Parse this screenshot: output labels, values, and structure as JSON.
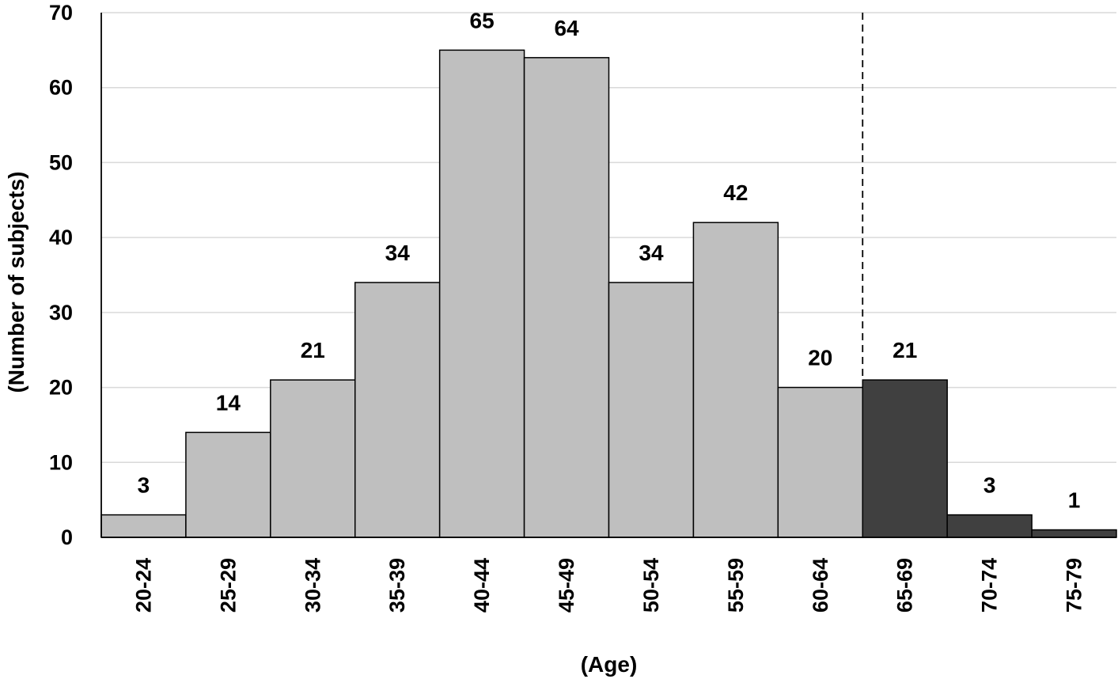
{
  "chart_data": {
    "type": "bar",
    "title": "",
    "xlabel": "(Age)",
    "ylabel": "(Number of subjects)",
    "categories": [
      "20-24",
      "25-29",
      "30-34",
      "35-39",
      "40-44",
      "45-49",
      "50-54",
      "55-59",
      "60-64",
      "65-69",
      "70-74",
      "75-79"
    ],
    "values": [
      3,
      14,
      21,
      34,
      65,
      64,
      34,
      42,
      20,
      21,
      3,
      1
    ],
    "data_labels": [
      "3",
      "14",
      "21",
      "34",
      "65",
      "64",
      "34",
      "42",
      "20",
      "21",
      "3",
      "1"
    ],
    "ylim": [
      0,
      70
    ],
    "yticks": [
      "0",
      "10",
      "20",
      "30",
      "40",
      "50",
      "60",
      "70"
    ],
    "grid": true,
    "legend": "none",
    "bar_colors": [
      "#bfbfbf",
      "#bfbfbf",
      "#bfbfbf",
      "#bfbfbf",
      "#bfbfbf",
      "#bfbfbf",
      "#bfbfbf",
      "#bfbfbf",
      "#bfbfbf",
      "#404040",
      "#404040",
      "#404040"
    ],
    "divider_after_category": "60-64",
    "colors": {
      "light_bar": "#bfbfbf",
      "dark_bar": "#404040",
      "bar_outline": "#000000",
      "grid": "#d9d9d9",
      "axis": "#000000"
    }
  }
}
